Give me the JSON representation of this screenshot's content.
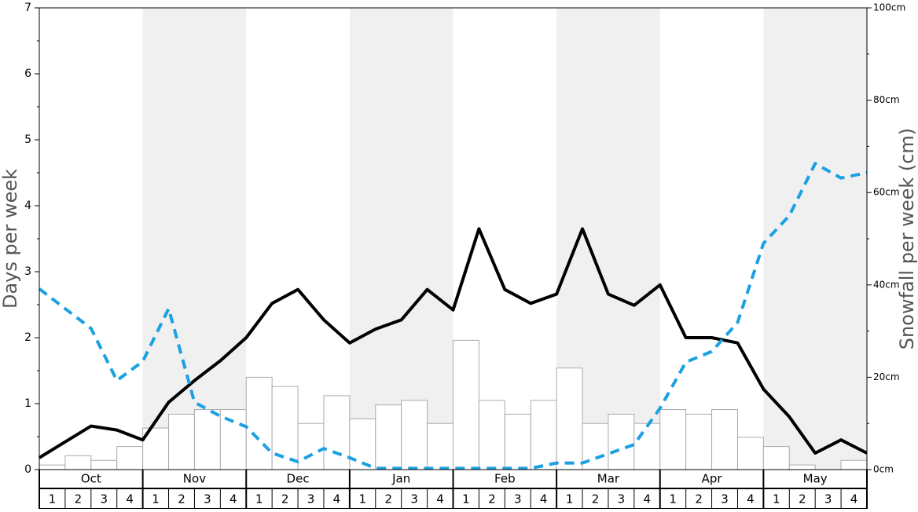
{
  "chart_data": {
    "type": "bar",
    "ylabel": "Days per week",
    "y2label": "Snowfall per week (cm)",
    "ylim": [
      0,
      7
    ],
    "yticks": [
      0,
      1,
      2,
      3,
      4,
      5,
      6,
      7
    ],
    "y2lim": [
      0,
      100
    ],
    "y2ticks": [
      {
        "value": 0,
        "label": "0cm"
      },
      {
        "value": 20,
        "label": "20cm"
      },
      {
        "value": 40,
        "label": "40cm"
      },
      {
        "value": 60,
        "label": "60cm"
      },
      {
        "value": 80,
        "label": "80cm"
      },
      {
        "value": 100,
        "label": "100cm"
      }
    ],
    "months": [
      "Oct",
      "Nov",
      "Dec",
      "Jan",
      "Feb",
      "Mar",
      "Apr",
      "May"
    ],
    "week_labels": [
      "1",
      "2",
      "3",
      "4"
    ],
    "series": [
      {
        "type": "bar",
        "axis": "y2",
        "color": "#ffffff",
        "values": [
          1,
          3,
          2,
          5,
          9,
          12,
          13,
          13,
          20,
          18,
          10,
          16,
          11,
          14,
          15,
          10,
          28,
          15,
          12,
          15,
          22,
          10,
          12,
          10,
          13,
          12,
          13,
          7,
          5,
          1,
          0,
          2
        ]
      },
      {
        "type": "line",
        "color": "#000000",
        "dashed": false,
        "values": [
          0.18,
          0.42,
          0.66,
          0.6,
          0.45,
          1.02,
          1.35,
          1.65,
          2.0,
          2.52,
          2.73,
          2.27,
          1.92,
          2.13,
          2.27,
          2.73,
          2.42,
          3.65,
          2.73,
          2.52,
          2.66,
          3.65,
          2.66,
          2.49,
          2.8,
          2.0,
          2.0,
          1.92,
          1.22,
          0.8,
          0.25,
          0.45,
          0.25
        ]
      },
      {
        "type": "line",
        "color": "#1ba1e2",
        "dashed": true,
        "values": [
          2.74,
          2.44,
          2.14,
          1.35,
          1.64,
          2.44,
          1.02,
          0.81,
          0.65,
          0.25,
          0.12,
          0.32,
          0.18,
          0.02,
          0.02,
          0.02,
          0.02,
          0.02,
          0.02,
          0.02,
          0.1,
          0.1,
          0.24,
          0.38,
          0.93,
          1.63,
          1.79,
          2.23,
          3.43,
          3.85,
          4.64,
          4.42,
          4.5
        ]
      }
    ]
  }
}
